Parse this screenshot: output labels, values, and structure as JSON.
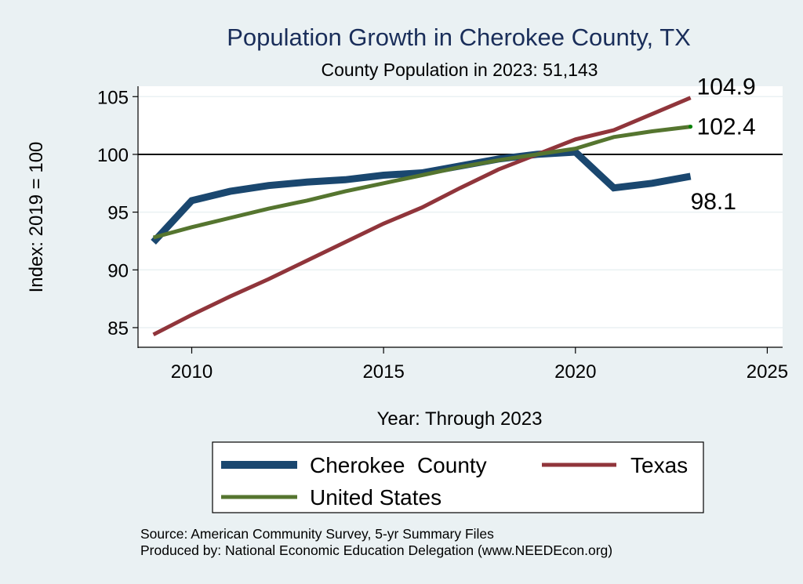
{
  "chart_data": {
    "type": "line",
    "title": "Population Growth in Cherokee County, TX",
    "subtitle": "County Population in 2023: 51,143",
    "xlabel": "Year: Through 2023",
    "ylabel": "Index: 2019 = 100",
    "xlim": [
      2008.6,
      2025.4
    ],
    "ylim": [
      83.3,
      105.9
    ],
    "xticks": [
      2010,
      2015,
      2020,
      2025
    ],
    "yticks": [
      85,
      90,
      95,
      100,
      105
    ],
    "reference_line": 100,
    "grid": true,
    "x": [
      2009,
      2010,
      2011,
      2012,
      2013,
      2014,
      2015,
      2016,
      2017,
      2018,
      2019,
      2020,
      2021,
      2022,
      2023
    ],
    "series": [
      {
        "name": "Cherokee  County",
        "color": "#1a476f",
        "values": [
          92.4,
          96.0,
          96.8,
          97.3,
          97.6,
          97.8,
          98.2,
          98.4,
          99.0,
          99.6,
          100.0,
          100.2,
          97.1,
          97.5,
          98.1
        ],
        "end_label": "98.1"
      },
      {
        "name": "Texas",
        "color": "#90353b",
        "values": [
          84.4,
          86.1,
          87.7,
          89.2,
          90.8,
          92.4,
          94.0,
          95.4,
          97.1,
          98.7,
          100.0,
          101.3,
          102.1,
          103.5,
          104.9
        ],
        "end_label": "104.9"
      },
      {
        "name": "United States",
        "color": "#55752f",
        "values": [
          92.8,
          93.7,
          94.5,
          95.3,
          96.0,
          96.8,
          97.5,
          98.2,
          98.9,
          99.5,
          100.0,
          100.5,
          101.5,
          102.0,
          102.4
        ],
        "end_label": "102.4"
      }
    ],
    "legend": {
      "placement": "bottom",
      "entries": [
        "Cherokee  County",
        "Texas",
        "United States"
      ]
    },
    "notes": [
      "Source: American Community Survey, 5-yr Summary Files",
      "Produced by: National Economic Education Delegation (www.NEEDEcon.org)"
    ]
  }
}
